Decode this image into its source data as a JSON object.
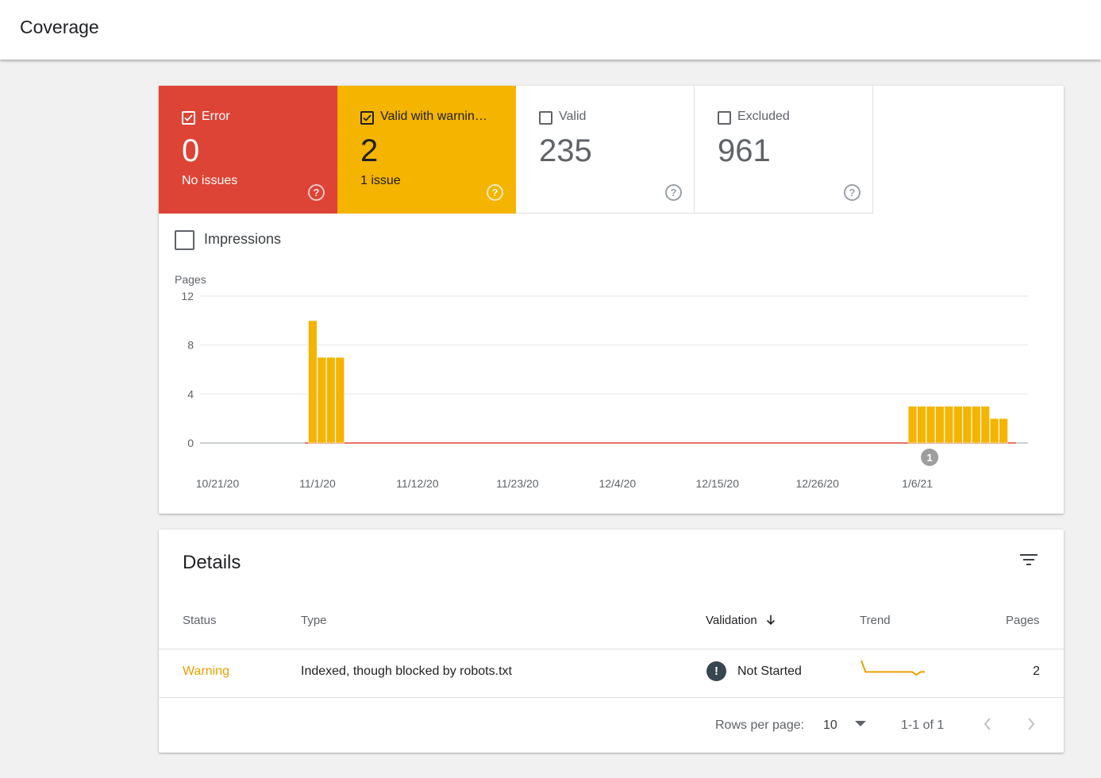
{
  "header": {
    "title": "Coverage"
  },
  "tiles": [
    {
      "label": "Error",
      "count": "0",
      "sub": "No issues",
      "checked": true,
      "color": "#dd4436"
    },
    {
      "label": "Valid with warnin…",
      "count": "2",
      "sub": "1 issue",
      "checked": true,
      "color": "#f4b400"
    },
    {
      "label": "Valid",
      "count": "235",
      "sub": "",
      "checked": false,
      "color": "#ffffff"
    },
    {
      "label": "Excluded",
      "count": "961",
      "sub": "",
      "checked": false,
      "color": "#ffffff"
    }
  ],
  "help_glyph": "?",
  "impressions": {
    "label": "Impressions",
    "checked": false
  },
  "chart_data": {
    "type": "bar",
    "ylabel": "Pages",
    "ylim": [
      0,
      12
    ],
    "yticks": [
      0,
      4,
      8,
      12
    ],
    "xticks": [
      "10/21/20",
      "11/1/20",
      "11/12/20",
      "11/23/20",
      "12/4/20",
      "12/15/20",
      "12/26/20",
      "1/6/21"
    ],
    "x_start": "10/21/20",
    "x_end": "1/16/21",
    "series": [
      {
        "color": "#f4b400",
        "points": [
          {
            "date": "10/31/20",
            "value": 10
          },
          {
            "date": "11/1/20",
            "value": 7
          },
          {
            "date": "11/2/20",
            "value": 7
          },
          {
            "date": "11/3/20",
            "value": 7
          },
          {
            "date": "1/5/21",
            "value": 3
          },
          {
            "date": "1/6/21",
            "value": 3
          },
          {
            "date": "1/7/21",
            "value": 3
          },
          {
            "date": "1/8/21",
            "value": 3
          },
          {
            "date": "1/9/21",
            "value": 3
          },
          {
            "date": "1/10/21",
            "value": 3
          },
          {
            "date": "1/11/21",
            "value": 3
          },
          {
            "date": "1/12/21",
            "value": 3
          },
          {
            "date": "1/13/21",
            "value": 3
          },
          {
            "date": "1/14/21",
            "value": 2
          },
          {
            "date": "1/15/21",
            "value": 2
          }
        ]
      }
    ],
    "error_series_color": "#dd4436",
    "annotations": [
      {
        "date": "1/7/21",
        "label": "1"
      }
    ]
  },
  "details": {
    "title": "Details",
    "columns": {
      "status": "Status",
      "type": "Type",
      "validation": "Validation",
      "trend": "Trend",
      "pages": "Pages"
    },
    "rows": [
      {
        "status": "Warning",
        "type": "Indexed, though blocked by robots.txt",
        "validation": "Not Started",
        "validation_icon": "!",
        "trend": [
          7,
          3,
          3,
          3,
          3,
          3,
          3,
          3,
          3,
          3,
          3,
          3,
          3,
          2,
          3,
          3
        ],
        "pages": "2"
      }
    ],
    "footer": {
      "rows_label": "Rows per page:",
      "rows_value": "10",
      "range": "1-1 of 1"
    }
  }
}
